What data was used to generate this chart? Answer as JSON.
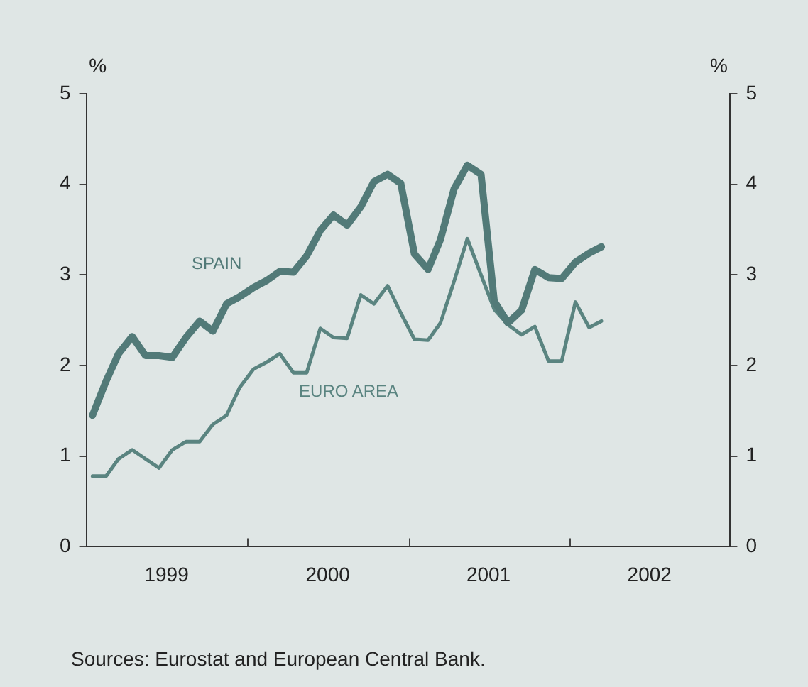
{
  "chart_data": {
    "type": "line",
    "x": [
      "1999-01-15",
      "1999-02-15",
      "1999-03-15",
      "1999-04-15",
      "1999-05-15",
      "1999-06-15",
      "1999-07-15",
      "1999-08-15",
      "1999-09-15",
      "1999-10-15",
      "1999-11-15",
      "1999-12-15",
      "2000-01-15",
      "2000-02-15",
      "2000-03-15",
      "2000-04-15",
      "2000-05-15",
      "2000-06-15",
      "2000-07-15",
      "2000-08-15",
      "2000-09-15",
      "2000-10-15",
      "2000-11-15",
      "2000-12-15",
      "2001-01-15",
      "2001-02-15",
      "2001-03-15",
      "2001-04-15",
      "2001-05-15",
      "2001-06-15",
      "2001-07-15",
      "2001-08-15",
      "2001-09-15",
      "2001-10-15",
      "2001-11-15",
      "2001-12-15",
      "2002-01-15",
      "2002-02-15",
      "2002-03-15"
    ],
    "series": [
      {
        "name": "SPAIN",
        "color": "#527a78",
        "values": [
          1.45,
          1.83,
          2.13,
          2.32,
          2.11,
          2.11,
          2.09,
          2.31,
          2.49,
          2.38,
          2.68,
          2.76,
          2.86,
          2.94,
          3.04,
          3.03,
          3.21,
          3.49,
          3.66,
          3.55,
          3.75,
          4.03,
          4.11,
          4.01,
          3.23,
          3.06,
          3.39,
          3.95,
          4.21,
          4.11,
          2.71,
          2.47,
          2.61,
          3.06,
          2.97,
          2.96,
          3.14,
          3.24,
          3.31
        ]
      },
      {
        "name": "EURO AREA",
        "color": "#5a8480",
        "values": [
          0.78,
          0.78,
          0.97,
          1.07,
          0.97,
          0.87,
          1.07,
          1.16,
          1.16,
          1.35,
          1.45,
          1.76,
          1.96,
          2.04,
          2.13,
          1.92,
          1.92,
          2.41,
          2.31,
          2.3,
          2.78,
          2.68,
          2.88,
          2.58,
          2.29,
          2.28,
          2.47,
          2.93,
          3.4,
          3.0,
          2.62,
          2.45,
          2.34,
          2.43,
          2.05,
          2.05,
          2.7,
          2.42,
          2.49
        ]
      }
    ],
    "xlim": [
      "1999-01-01",
      "2003-01-01"
    ],
    "xticks": [
      {
        "value": "2000-01-01",
        "label": null
      },
      {
        "value": "2001-01-01",
        "label": null
      },
      {
        "value": "2002-01-01",
        "label": null
      },
      {
        "value": "1999-07-02",
        "label": "1999"
      },
      {
        "value": "2000-07-02",
        "label": "2000"
      },
      {
        "value": "2001-07-02",
        "label": "2001"
      },
      {
        "value": "2002-07-02",
        "label": "2002"
      }
    ],
    "ylim": [
      0,
      5
    ],
    "yticks": [
      0,
      1,
      2,
      3,
      4,
      5
    ],
    "y2lim": [
      0,
      5
    ],
    "y2ticks": [
      0,
      1,
      2,
      3,
      4,
      5
    ],
    "ylabel": "%",
    "y2label": "%",
    "annotations": [
      "Sources: Eurostat and European Central Bank."
    ],
    "grid": false,
    "legend": false,
    "marker": "none",
    "line_style": "solid"
  }
}
